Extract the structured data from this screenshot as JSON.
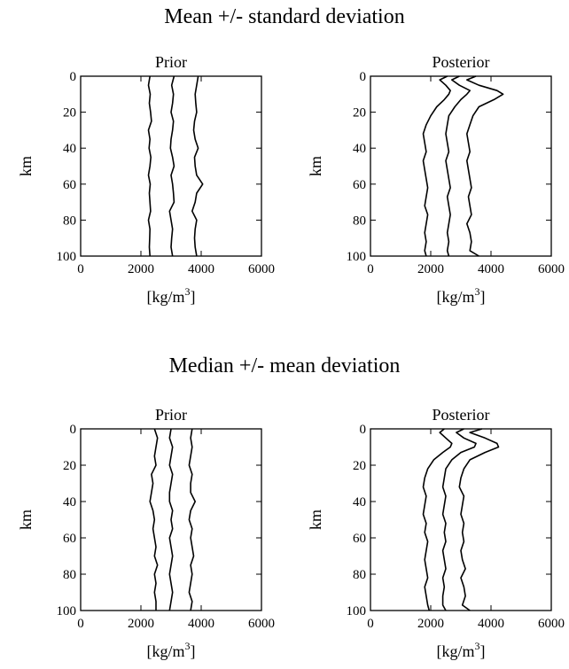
{
  "chart_data": [
    {
      "type": "line",
      "section_title": "Mean +/- standard deviation",
      "title": "Prior",
      "xlabel": "[kg/m",
      "xlabel_sup": "3",
      "xlabel_end": "]",
      "ylabel": "km",
      "xlim": [
        0,
        6000
      ],
      "ylim": [
        0,
        100
      ],
      "y_inverted": true,
      "xticks": [
        0,
        2000,
        4000,
        6000
      ],
      "yticks": [
        0,
        20,
        40,
        60,
        80,
        100
      ],
      "grid": false,
      "x": [
        0,
        5,
        10,
        15,
        20,
        25,
        30,
        35,
        40,
        45,
        50,
        55,
        60,
        65,
        70,
        75,
        80,
        85,
        90,
        95,
        100
      ],
      "series": [
        {
          "values": [
            2300,
            2250,
            2310,
            2280,
            2320,
            2350,
            2250,
            2300,
            2270,
            2330,
            2300,
            2250,
            2310,
            2280,
            2300,
            2320,
            2250,
            2300,
            2290,
            2280,
            2300
          ]
        },
        {
          "values": [
            3100,
            3020,
            3080,
            3050,
            3000,
            3080,
            3050,
            3000,
            2980,
            3050,
            3100,
            3000,
            3050,
            3080,
            3100,
            2950,
            3000,
            3050,
            3020,
            3000,
            3050
          ]
        },
        {
          "values": [
            3900,
            3850,
            3800,
            3820,
            3850,
            3780,
            3750,
            3800,
            3900,
            3780,
            3800,
            3850,
            4050,
            3850,
            3800,
            3700,
            3850,
            3800,
            3780,
            3800,
            3850
          ]
        }
      ]
    },
    {
      "type": "line",
      "section_title": "Mean +/- standard deviation",
      "title": "Posterior",
      "xlabel": "[kg/m",
      "xlabel_sup": "3",
      "xlabel_end": "]",
      "ylabel": "km",
      "xlim": [
        0,
        6000
      ],
      "ylim": [
        0,
        100
      ],
      "y_inverted": true,
      "xticks": [
        0,
        2000,
        4000,
        6000
      ],
      "yticks": [
        0,
        20,
        40,
        60,
        80,
        100
      ],
      "grid": false,
      "x": [
        0,
        2,
        5,
        8,
        10,
        13,
        17,
        22,
        27,
        32,
        37,
        42,
        47,
        52,
        57,
        62,
        67,
        72,
        77,
        82,
        87,
        92,
        97,
        100
      ],
      "series": [
        {
          "values": [
            2550,
            2300,
            2500,
            2650,
            2600,
            2450,
            2200,
            2000,
            1850,
            1750,
            1800,
            1850,
            1750,
            1800,
            1850,
            1900,
            1850,
            1800,
            1900,
            1850,
            1800,
            1850,
            1800,
            1850
          ]
        },
        {
          "values": [
            2950,
            2700,
            2950,
            3300,
            3200,
            3000,
            2800,
            2600,
            2550,
            2500,
            2550,
            2600,
            2500,
            2550,
            2600,
            2650,
            2550,
            2600,
            2650,
            2600,
            2550,
            2600,
            2550,
            2600
          ]
        },
        {
          "values": [
            3500,
            3200,
            3600,
            4200,
            4400,
            4100,
            3600,
            3400,
            3300,
            3200,
            3250,
            3300,
            3200,
            3250,
            3300,
            3350,
            3250,
            3300,
            3350,
            3200,
            3300,
            3350,
            3300,
            3600
          ]
        }
      ]
    },
    {
      "type": "line",
      "section_title": "Median +/- mean deviation",
      "title": "Prior",
      "xlabel": "[kg/m",
      "xlabel_sup": "3",
      "xlabel_end": "]",
      "ylabel": "km",
      "xlim": [
        0,
        6000
      ],
      "ylim": [
        0,
        100
      ],
      "y_inverted": true,
      "xticks": [
        0,
        2000,
        4000,
        6000
      ],
      "yticks": [
        0,
        20,
        40,
        60,
        80,
        100
      ],
      "grid": false,
      "x": [
        0,
        5,
        10,
        15,
        20,
        25,
        30,
        35,
        40,
        45,
        50,
        55,
        60,
        65,
        70,
        75,
        80,
        85,
        90,
        95,
        100
      ],
      "series": [
        {
          "values": [
            2450,
            2550,
            2500,
            2450,
            2500,
            2350,
            2400,
            2350,
            2300,
            2400,
            2450,
            2400,
            2450,
            2500,
            2450,
            2550,
            2450,
            2500,
            2450,
            2500,
            2500
          ]
        },
        {
          "values": [
            3000,
            2950,
            3050,
            3000,
            2950,
            3050,
            3000,
            2950,
            2950,
            3050,
            3000,
            3050,
            2950,
            3000,
            3050,
            3000,
            2950,
            3000,
            3050,
            3000,
            2950
          ]
        },
        {
          "values": [
            3700,
            3650,
            3700,
            3650,
            3600,
            3700,
            3650,
            3650,
            3800,
            3650,
            3600,
            3700,
            3650,
            3700,
            3750,
            3650,
            3700,
            3650,
            3600,
            3700,
            3650
          ]
        }
      ]
    },
    {
      "type": "line",
      "section_title": "Median +/- mean deviation",
      "title": "Posterior",
      "xlabel": "[kg/m",
      "xlabel_sup": "3",
      "xlabel_end": "]",
      "ylabel": "km",
      "xlim": [
        0,
        6000
      ],
      "ylim": [
        0,
        100
      ],
      "y_inverted": true,
      "xticks": [
        0,
        2000,
        4000,
        6000
      ],
      "yticks": [
        0,
        20,
        40,
        60,
        80,
        100
      ],
      "grid": false,
      "x": [
        0,
        2,
        5,
        8,
        10,
        13,
        17,
        22,
        27,
        32,
        37,
        42,
        47,
        52,
        57,
        62,
        67,
        72,
        77,
        82,
        87,
        92,
        97,
        100
      ],
      "series": [
        {
          "values": [
            2450,
            2300,
            2500,
            2700,
            2650,
            2400,
            2100,
            1900,
            1800,
            1750,
            1850,
            1800,
            1750,
            1850,
            1800,
            1900,
            1850,
            1800,
            1850,
            1900,
            1800,
            1850,
            1900,
            1950
          ]
        },
        {
          "values": [
            3100,
            2850,
            3100,
            3500,
            3450,
            3000,
            2700,
            2500,
            2450,
            2400,
            2500,
            2450,
            2400,
            2500,
            2450,
            2500,
            2400,
            2450,
            2500,
            2400,
            2450,
            2400,
            2400,
            2500
          ]
        },
        {
          "values": [
            3700,
            3300,
            3800,
            4200,
            4250,
            3800,
            3300,
            3100,
            3000,
            2950,
            3100,
            3050,
            3000,
            3100,
            3050,
            3100,
            3000,
            3050,
            3150,
            3000,
            3100,
            3150,
            3050,
            3300
          ]
        }
      ]
    }
  ]
}
